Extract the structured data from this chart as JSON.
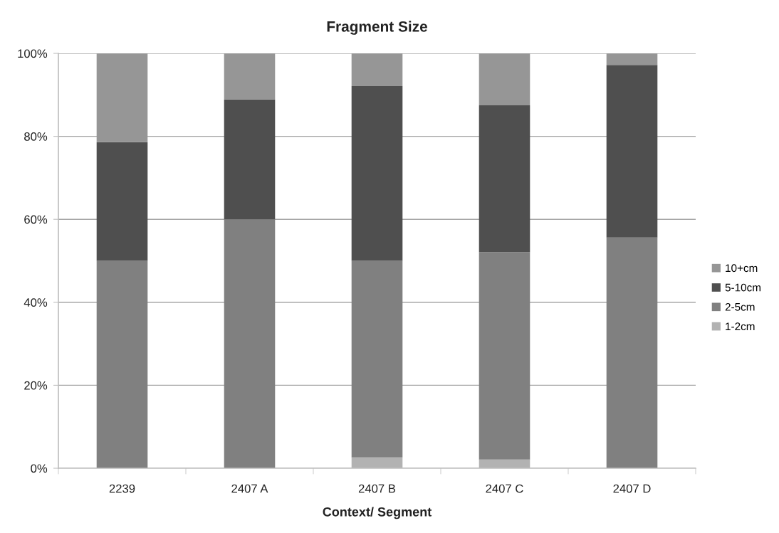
{
  "chart_data": {
    "type": "bar",
    "title": "Fragment Size",
    "xlabel": "Context/ Segment",
    "categories": [
      "2239",
      "2407 A",
      "2407 B",
      "2407 C",
      "2407 D"
    ],
    "stacked": true,
    "series": [
      {
        "name": "1-2cm",
        "color": "#b2b2b2",
        "values": [
          0,
          0,
          2.6,
          2.1,
          0
        ]
      },
      {
        "name": "2-5cm",
        "color": "#808080",
        "values": [
          50,
          60,
          47.4,
          50,
          55.6
        ]
      },
      {
        "name": "5-10cm",
        "color": "#4f4f4f",
        "values": [
          28.6,
          28.9,
          42.1,
          35.4,
          41.6
        ]
      },
      {
        "name": "10+cm",
        "color": "#969696",
        "values": [
          21.4,
          11.1,
          7.9,
          12.5,
          2.8
        ]
      }
    ],
    "ylim": [
      0,
      100
    ],
    "yticks": [
      {
        "value": 0,
        "label": "0%"
      },
      {
        "value": 20,
        "label": "20%"
      },
      {
        "value": 40,
        "label": "40%"
      },
      {
        "value": 60,
        "label": "60%"
      },
      {
        "value": 80,
        "label": "80%"
      },
      {
        "value": 100,
        "label": "100%"
      }
    ],
    "grid": "y",
    "legend": "right"
  }
}
